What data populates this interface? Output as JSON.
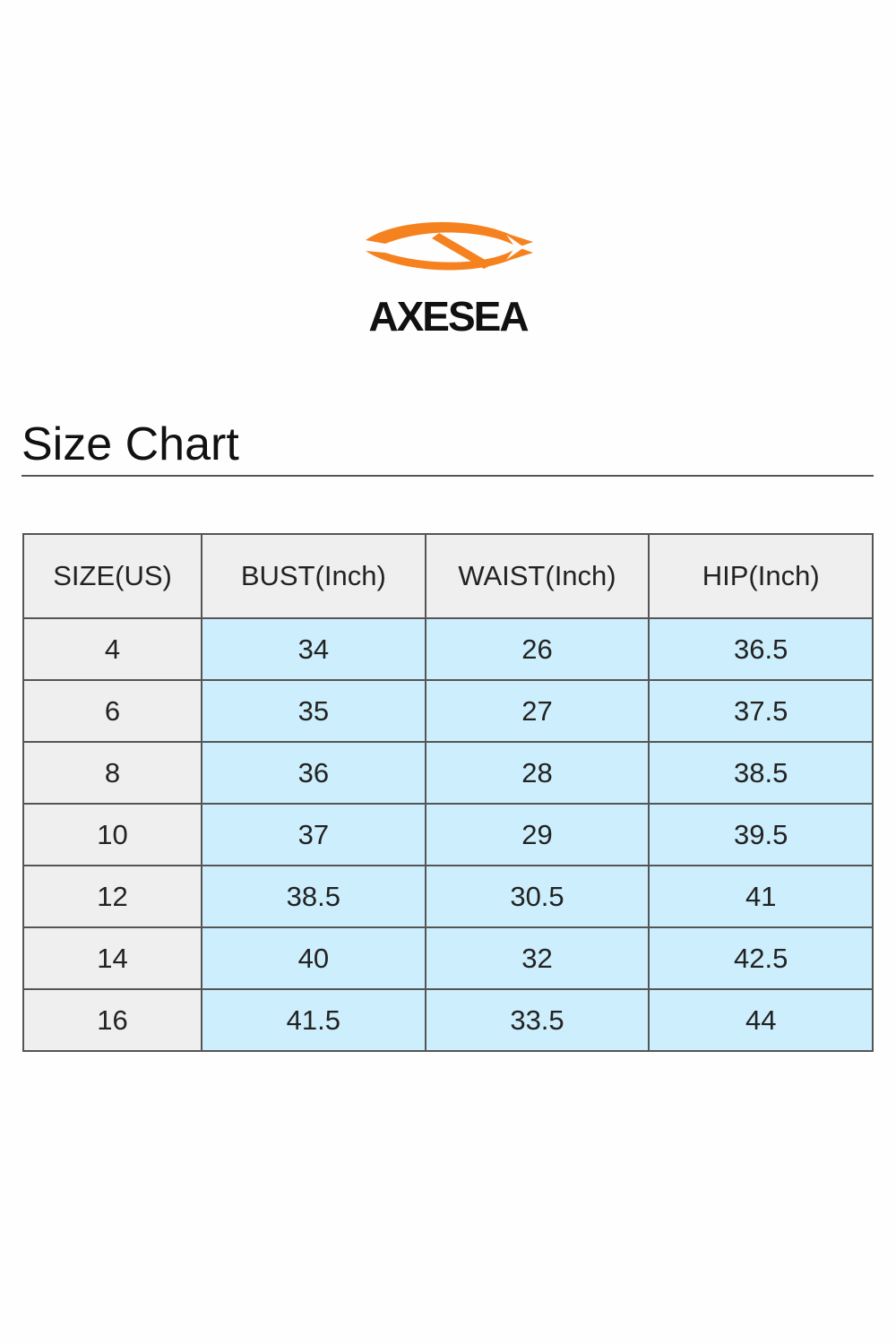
{
  "header": {
    "brand": "AXESEA",
    "title": "Size Chart"
  },
  "table": {
    "columns": [
      "SIZE(US)",
      "BUST(Inch)",
      "WAIST(Inch)",
      "HIP(Inch)"
    ],
    "rows": [
      [
        "4",
        "34",
        "26",
        "36.5"
      ],
      [
        "6",
        "35",
        "27",
        "37.5"
      ],
      [
        "8",
        "36",
        "28",
        "38.5"
      ],
      [
        "10",
        "37",
        "29",
        "39.5"
      ],
      [
        "12",
        "38.5",
        "30.5",
        "41"
      ],
      [
        "14",
        "40",
        "32",
        "42.5"
      ],
      [
        "16",
        "41.5",
        "33.5",
        "44"
      ]
    ]
  }
}
